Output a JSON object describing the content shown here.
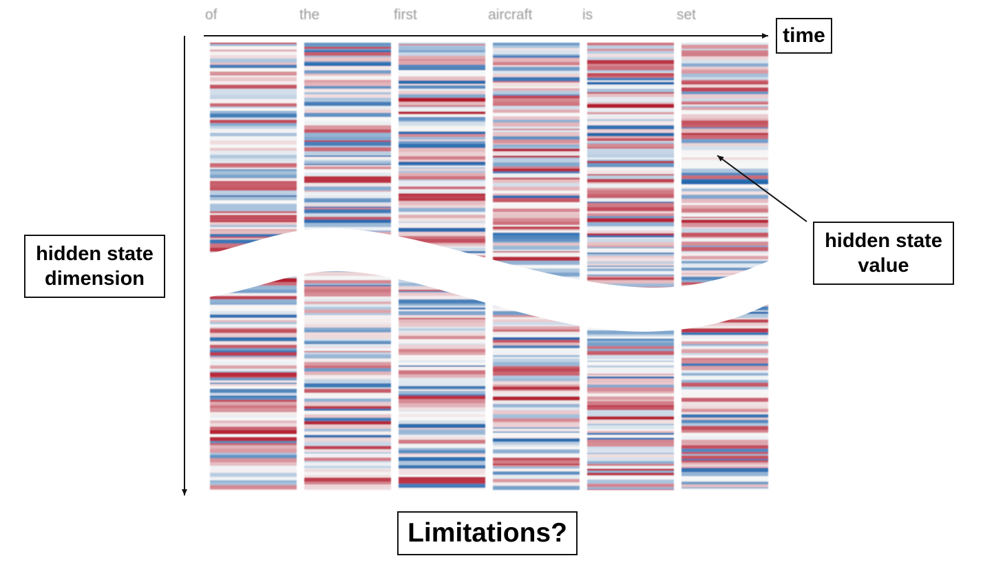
{
  "tokens": [
    "of",
    "the",
    "first",
    "aircraft",
    "is",
    "set"
  ],
  "labels": {
    "time": "time",
    "hidden_state_dimension": "hidden state\ndimension",
    "hidden_state_value": "hidden state\nvalue",
    "question": "Limitations?"
  },
  "colors": {
    "negative": "#b2182b",
    "positive": "#2166ac",
    "neutral": "#f7f7f7",
    "axis": "#111111",
    "token_text": "#9a9a9a"
  }
}
